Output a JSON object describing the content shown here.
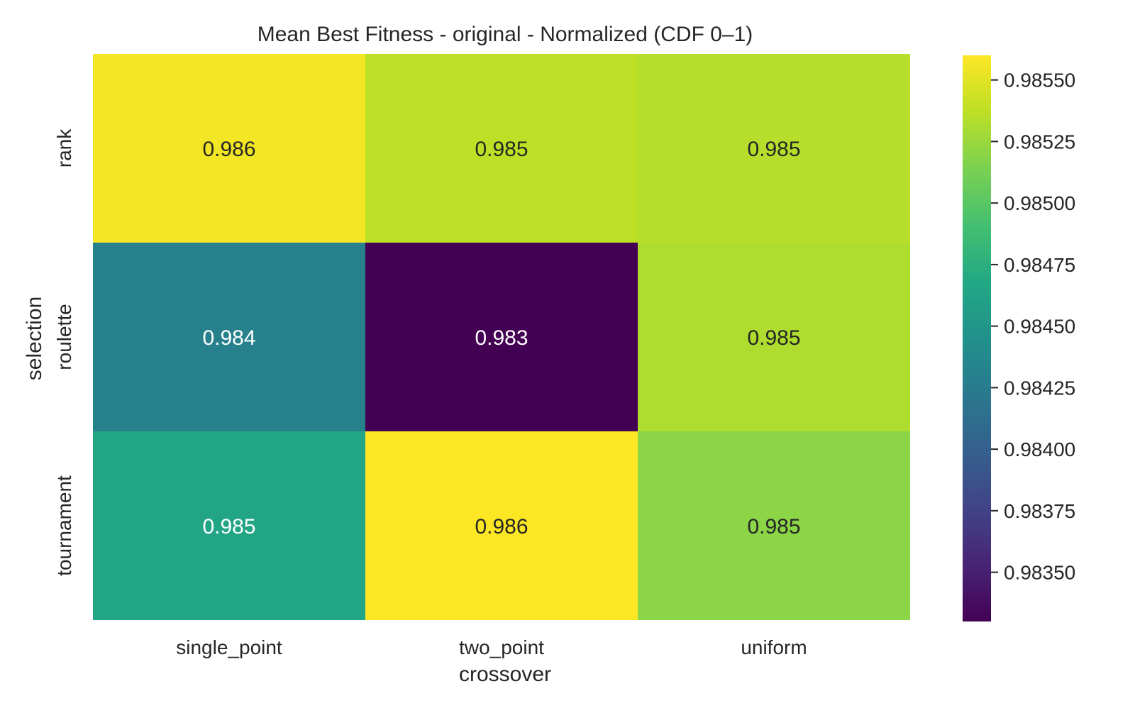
{
  "chart_data": {
    "type": "heatmap",
    "title": "Mean Best Fitness - original - Normalized (CDF 0–1)",
    "xlabel": "crossover",
    "ylabel": "selection",
    "x_categories": [
      "single_point",
      "two_point",
      "uniform"
    ],
    "y_categories": [
      "rank",
      "roulette",
      "tournament"
    ],
    "values": [
      [
        0.98556,
        0.98537,
        0.98535
      ],
      [
        0.9843,
        0.9833,
        0.98532
      ],
      [
        0.98465,
        0.9856,
        0.9852
      ]
    ],
    "cell_labels": [
      [
        "0.986",
        "0.985",
        "0.985"
      ],
      [
        "0.984",
        "0.983",
        "0.985"
      ],
      [
        "0.985",
        "0.986",
        "0.985"
      ]
    ],
    "colormap": "viridis",
    "colorbar": {
      "vmin": 0.9833,
      "vmax": 0.9856,
      "ticks": [
        0.9835,
        0.98375,
        0.984,
        0.98425,
        0.9845,
        0.98475,
        0.985,
        0.98525,
        0.9855
      ],
      "tick_labels": [
        "0.98350",
        "0.98375",
        "0.98400",
        "0.98425",
        "0.98450",
        "0.98475",
        "0.98500",
        "0.98525",
        "0.98550"
      ]
    },
    "grid": false
  }
}
